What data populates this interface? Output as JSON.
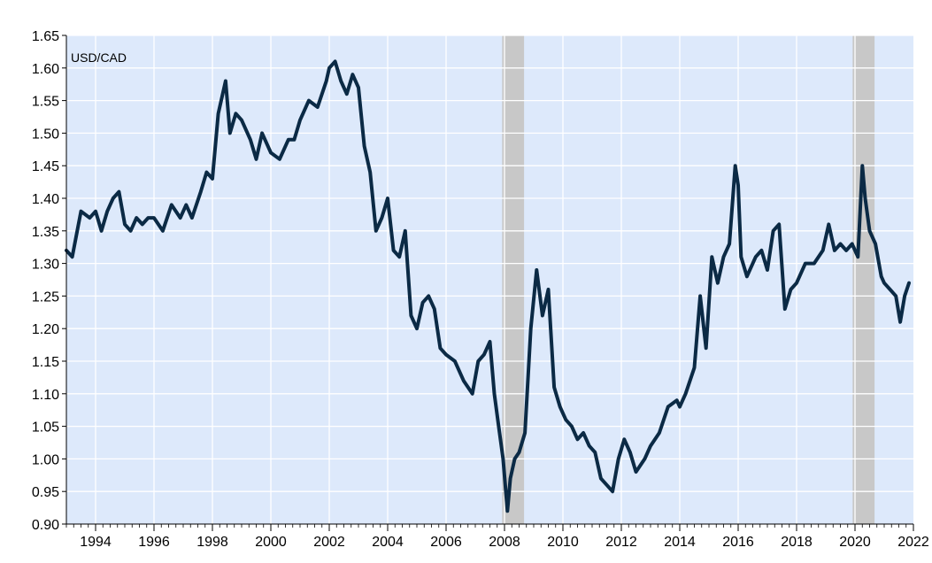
{
  "chart_data": {
    "type": "line",
    "title": "",
    "series_label": "USD/CAD",
    "xlabel": "",
    "ylabel": "",
    "xlim": [
      1993.0,
      2022.0
    ],
    "ylim": [
      0.9,
      1.65
    ],
    "x_ticks": [
      "1994",
      "1996",
      "1998",
      "2000",
      "2002",
      "2004",
      "2006",
      "2008",
      "2010",
      "2012",
      "2014",
      "2016",
      "2018",
      "2020",
      "2022"
    ],
    "y_ticks": [
      "0.90",
      "0.95",
      "1.00",
      "1.05",
      "1.10",
      "1.15",
      "1.20",
      "1.25",
      "1.30",
      "1.35",
      "1.40",
      "1.45",
      "1.50",
      "1.55",
      "1.60",
      "1.65"
    ],
    "grid": true,
    "recessions": [
      [
        2007.92,
        2008.67
      ],
      [
        2019.92,
        2020.67
      ]
    ],
    "colors": {
      "line": "#0b2a45",
      "plot_background": "#dde9fb",
      "recession": "#c8c8c8",
      "grid": "#ffffff"
    },
    "series": [
      {
        "x": [
          1993.0,
          1993.2,
          1993.5,
          1993.8,
          1994.0,
          1994.2,
          1994.4,
          1994.6,
          1994.8,
          1995.0,
          1995.2,
          1995.4,
          1995.6,
          1995.8,
          1996.0,
          1996.3,
          1996.6,
          1996.9,
          1997.1,
          1997.3,
          1997.6,
          1997.8,
          1998.0,
          1998.2,
          1998.45,
          1998.6,
          1998.8,
          1999.0,
          1999.3,
          1999.5,
          1999.7,
          2000.0,
          2000.3,
          2000.6,
          2000.8,
          2001.0,
          2001.3,
          2001.6,
          2001.9,
          2002.0,
          2002.2,
          2002.4,
          2002.6,
          2002.8,
          2003.0,
          2003.2,
          2003.4,
          2003.6,
          2003.8,
          2004.0,
          2004.2,
          2004.4,
          2004.6,
          2004.8,
          2005.0,
          2005.2,
          2005.4,
          2005.6,
          2005.8,
          2006.0,
          2006.3,
          2006.6,
          2006.9,
          2007.1,
          2007.3,
          2007.5,
          2007.65,
          2007.8,
          2007.95,
          2008.1,
          2008.2,
          2008.35,
          2008.5,
          2008.7,
          2008.9,
          2009.1,
          2009.3,
          2009.5,
          2009.7,
          2009.9,
          2010.1,
          2010.3,
          2010.5,
          2010.7,
          2010.9,
          2011.1,
          2011.3,
          2011.5,
          2011.7,
          2011.9,
          2012.1,
          2012.3,
          2012.5,
          2012.8,
          2013.0,
          2013.3,
          2013.6,
          2013.9,
          2014.0,
          2014.2,
          2014.5,
          2014.7,
          2014.9,
          2015.1,
          2015.3,
          2015.5,
          2015.7,
          2015.9,
          2016.0,
          2016.1,
          2016.3,
          2016.6,
          2016.8,
          2017.0,
          2017.2,
          2017.4,
          2017.6,
          2017.8,
          2018.0,
          2018.3,
          2018.6,
          2018.9,
          2019.1,
          2019.3,
          2019.5,
          2019.7,
          2019.9,
          2020.1,
          2020.25,
          2020.35,
          2020.5,
          2020.7,
          2020.9,
          2021.0,
          2021.2,
          2021.4,
          2021.55,
          2021.7,
          2021.85
        ],
        "y": [
          1.32,
          1.31,
          1.38,
          1.37,
          1.38,
          1.35,
          1.38,
          1.4,
          1.41,
          1.36,
          1.35,
          1.37,
          1.36,
          1.37,
          1.37,
          1.35,
          1.39,
          1.37,
          1.39,
          1.37,
          1.41,
          1.44,
          1.43,
          1.53,
          1.58,
          1.5,
          1.53,
          1.52,
          1.49,
          1.46,
          1.5,
          1.47,
          1.46,
          1.49,
          1.49,
          1.52,
          1.55,
          1.54,
          1.58,
          1.6,
          1.61,
          1.58,
          1.56,
          1.59,
          1.57,
          1.48,
          1.44,
          1.35,
          1.37,
          1.4,
          1.32,
          1.31,
          1.35,
          1.22,
          1.2,
          1.24,
          1.25,
          1.23,
          1.17,
          1.16,
          1.15,
          1.12,
          1.1,
          1.15,
          1.16,
          1.18,
          1.1,
          1.05,
          1.0,
          0.92,
          0.97,
          1.0,
          1.01,
          1.04,
          1.2,
          1.29,
          1.22,
          1.26,
          1.11,
          1.08,
          1.06,
          1.05,
          1.03,
          1.04,
          1.02,
          1.01,
          0.97,
          0.96,
          0.95,
          1.0,
          1.03,
          1.01,
          0.98,
          1.0,
          1.02,
          1.04,
          1.08,
          1.09,
          1.08,
          1.1,
          1.14,
          1.25,
          1.17,
          1.31,
          1.27,
          1.31,
          1.33,
          1.45,
          1.42,
          1.31,
          1.28,
          1.31,
          1.32,
          1.29,
          1.35,
          1.36,
          1.23,
          1.26,
          1.27,
          1.3,
          1.3,
          1.32,
          1.36,
          1.32,
          1.33,
          1.32,
          1.33,
          1.31,
          1.45,
          1.4,
          1.35,
          1.33,
          1.28,
          1.27,
          1.26,
          1.25,
          1.21,
          1.25,
          1.27
        ]
      }
    ]
  }
}
